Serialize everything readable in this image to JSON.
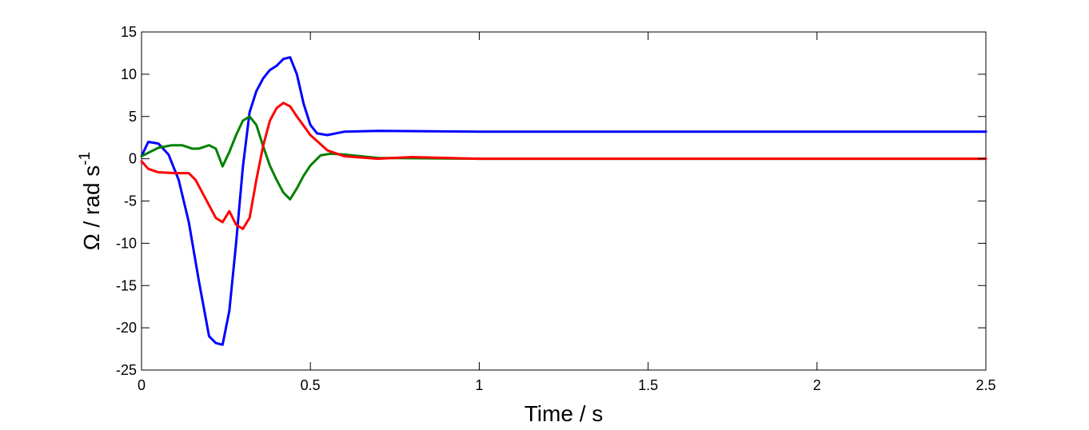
{
  "chart_data": {
    "type": "line",
    "title": "",
    "xlabel": "Time / s",
    "ylabel_main": "Ω  / rad s",
    "ylabel_sup": "-1",
    "xlim": [
      0,
      2.5
    ],
    "ylim": [
      -25,
      15
    ],
    "x_ticks": [
      0,
      0.5,
      1,
      1.5,
      2,
      2.5
    ],
    "x_tick_labels": [
      "0",
      "0.5",
      "1",
      "1.5",
      "2",
      "2.5"
    ],
    "y_ticks": [
      -25,
      -20,
      -15,
      -10,
      -5,
      0,
      5,
      10,
      15
    ],
    "y_tick_labels": [
      "-25",
      "-20",
      "-15",
      "-10",
      "-5",
      "0",
      "5",
      "10",
      "15"
    ],
    "grid": false,
    "series": [
      {
        "color": "#0000ff",
        "x": [
          0,
          0.02,
          0.05,
          0.08,
          0.11,
          0.14,
          0.17,
          0.2,
          0.22,
          0.24,
          0.26,
          0.28,
          0.3,
          0.32,
          0.34,
          0.36,
          0.38,
          0.4,
          0.42,
          0.44,
          0.46,
          0.48,
          0.5,
          0.52,
          0.55,
          0.6,
          0.7,
          1.0,
          1.5,
          2.0,
          2.5
        ],
        "y": [
          0.3,
          2.0,
          1.8,
          0.5,
          -2.5,
          -7.5,
          -14.5,
          -21.0,
          -21.8,
          -22.0,
          -18.0,
          -10.0,
          -1.0,
          5.5,
          8.0,
          9.5,
          10.5,
          11.0,
          11.8,
          12.0,
          10.0,
          6.5,
          4.0,
          3.0,
          2.8,
          3.2,
          3.3,
          3.2,
          3.2,
          3.2,
          3.2
        ]
      },
      {
        "color": "#008000",
        "x": [
          0,
          0.05,
          0.09,
          0.12,
          0.15,
          0.17,
          0.2,
          0.22,
          0.24,
          0.26,
          0.28,
          0.3,
          0.32,
          0.34,
          0.36,
          0.38,
          0.4,
          0.42,
          0.44,
          0.46,
          0.48,
          0.5,
          0.53,
          0.56,
          0.6,
          0.7,
          1.0,
          1.5,
          2.0,
          2.5
        ],
        "y": [
          0.3,
          1.3,
          1.6,
          1.6,
          1.2,
          1.2,
          1.6,
          1.2,
          -0.9,
          0.8,
          2.8,
          4.5,
          5.0,
          4.0,
          1.5,
          -0.8,
          -2.5,
          -4.0,
          -4.8,
          -3.5,
          -2.0,
          -0.8,
          0.4,
          0.6,
          0.5,
          0.1,
          0.0,
          0.0,
          0.0,
          0.0
        ]
      },
      {
        "color": "#ff0000",
        "x": [
          0,
          0.02,
          0.05,
          0.1,
          0.14,
          0.16,
          0.18,
          0.2,
          0.22,
          0.24,
          0.26,
          0.28,
          0.3,
          0.32,
          0.34,
          0.36,
          0.38,
          0.4,
          0.42,
          0.44,
          0.46,
          0.5,
          0.55,
          0.6,
          0.7,
          0.8,
          1.0,
          1.5,
          2.0,
          2.5
        ],
        "y": [
          -0.3,
          -1.2,
          -1.6,
          -1.7,
          -1.7,
          -2.5,
          -4.0,
          -5.5,
          -7.0,
          -7.5,
          -6.2,
          -7.8,
          -8.3,
          -7.0,
          -2.5,
          1.5,
          4.5,
          6.0,
          6.6,
          6.2,
          5.0,
          2.8,
          1.0,
          0.3,
          0.0,
          0.2,
          0.0,
          0.0,
          0.0,
          0.0
        ]
      }
    ]
  }
}
